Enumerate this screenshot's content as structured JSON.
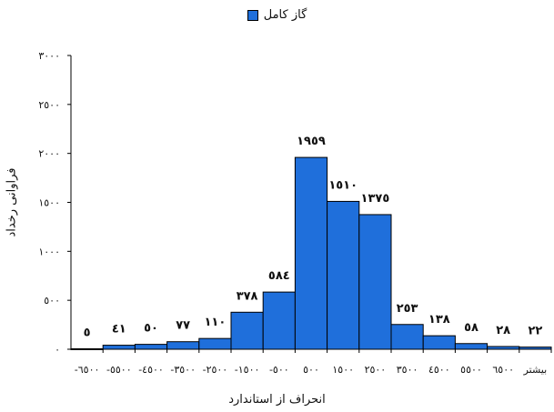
{
  "chart_data": {
    "type": "bar",
    "title": "",
    "legend": [
      {
        "name": "گاز کامل",
        "color": "#1f6fdb"
      }
    ],
    "legend_position": "top-center",
    "xlabel": "انحراف از استاندارد",
    "ylabel": "فراوانی رخداد",
    "ylim": [
      0,
      3000
    ],
    "yticks": [
      "٠",
      "٥٠٠",
      "١٠٠٠",
      "١٥٠٠",
      "٢٠٠٠",
      "٢٥٠٠",
      "٣٠٠٠"
    ],
    "grid": false,
    "categories": [
      "-٦٥٠٠",
      "-٥٥٠٠",
      "-٤٥٠٠",
      "-٣٥٠٠",
      "-٢٥٠٠",
      "-١٥٠٠",
      "-٥٠٠",
      "٥٠٠",
      "١٥٠٠",
      "٢٥٠٠",
      "٣٥٠٠",
      "٤٥٠٠",
      "٥٥٠٠",
      "٦٥٠٠",
      "بیشتر"
    ],
    "series": [
      {
        "name": "گاز کامل",
        "values": [
          5,
          41,
          50,
          77,
          110,
          378,
          584,
          1959,
          1510,
          1375,
          253,
          138,
          58,
          28,
          22
        ],
        "labels": [
          "٥",
          "٤١",
          "٥٠",
          "٧٧",
          "١١٠",
          "٣٧٨",
          "٥٨٤",
          "١٩٥٩",
          "١٥١٠",
          "١٣٧٥",
          "٢٥٣",
          "١٣٨",
          "٥٨",
          "٢٨",
          "٢٢"
        ]
      }
    ]
  }
}
